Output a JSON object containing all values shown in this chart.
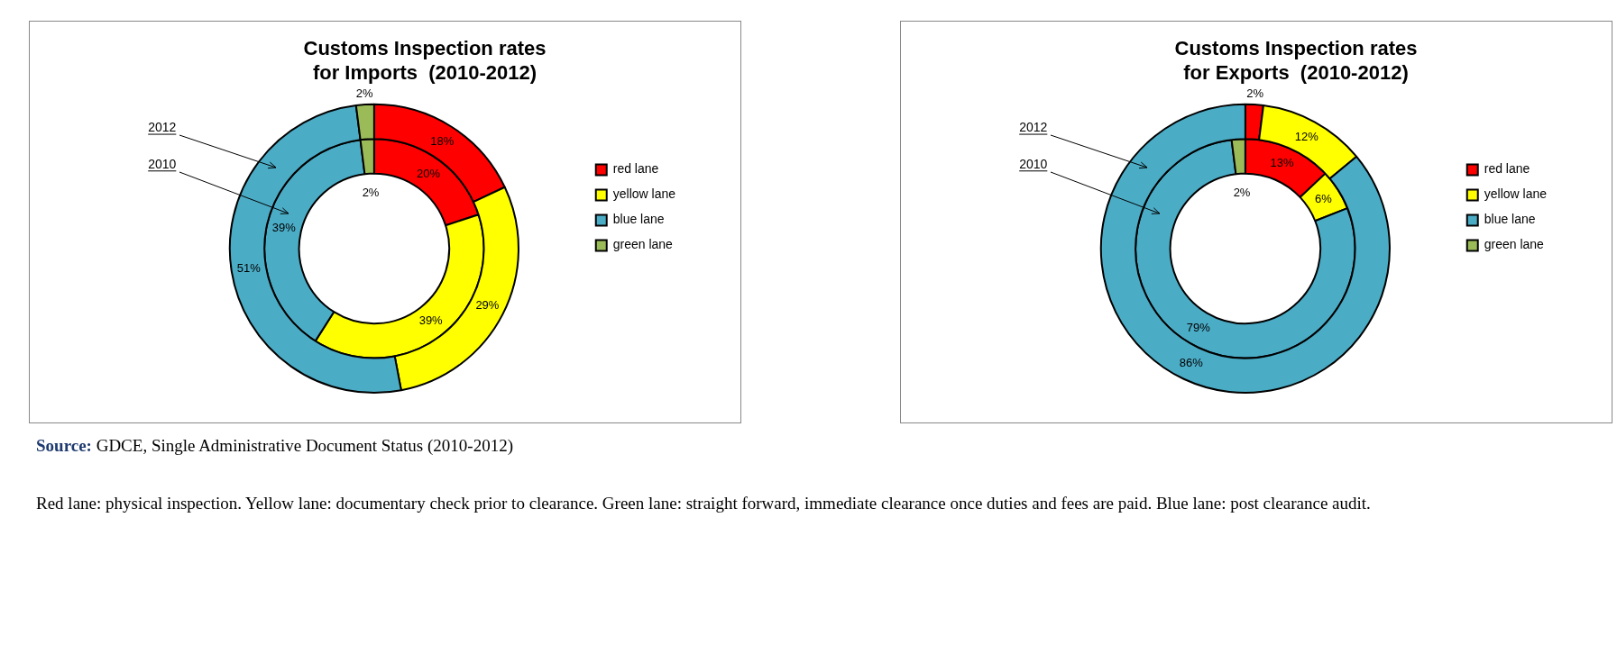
{
  "chart_data": [
    {
      "type": "donut",
      "title": "Customs Inspection rates\nfor Imports  (2010-2012)",
      "categories": [
        "red lane",
        "yellow lane",
        "blue lane",
        "green lane"
      ],
      "colors": [
        "#ff0000",
        "#ffff00",
        "#4bacc6",
        "#9bbb59"
      ],
      "legend": "right",
      "series": [
        {
          "name": "2012",
          "values": [
            18,
            29,
            51,
            2
          ],
          "value_labels": [
            "18%",
            "29%",
            "51%",
            "2%"
          ]
        },
        {
          "name": "2010",
          "values": [
            20,
            39,
            39,
            2
          ],
          "value_labels": [
            "20%",
            "39%",
            "39%",
            "2%"
          ]
        }
      ],
      "annotations": [
        "Source: GDCE, Single Administrative Document Status (2010-2012)",
        "Red lane: physical inspection. Yellow lane: documentary check prior to clearance. Green lane: straight forward, immediate clearance once duties and fees are paid.  Blue lane: post clearance audit."
      ]
    },
    {
      "type": "donut",
      "title": "Customs Inspection rates\nfor Exports  (2010-2012)",
      "categories": [
        "red lane",
        "yellow lane",
        "blue lane",
        "green lane"
      ],
      "colors": [
        "#ff0000",
        "#ffff00",
        "#4bacc6",
        "#9bbb59"
      ],
      "legend": "right",
      "series": [
        {
          "name": "2012",
          "values": [
            2,
            12,
            86,
            0
          ],
          "value_labels": [
            "2%",
            "12%",
            "86%",
            null
          ]
        },
        {
          "name": "2010",
          "values": [
            13,
            6,
            79,
            2
          ],
          "value_labels": [
            "13%",
            "6%",
            "79%",
            "2%"
          ]
        }
      ]
    }
  ]
}
